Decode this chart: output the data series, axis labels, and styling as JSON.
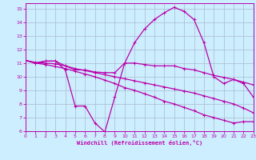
{
  "xlabel": "Windchill (Refroidissement éolien,°C)",
  "xlim": [
    0,
    23
  ],
  "ylim": [
    6,
    15.4
  ],
  "yticks": [
    6,
    7,
    8,
    9,
    10,
    11,
    12,
    13,
    14,
    15
  ],
  "xticks": [
    0,
    1,
    2,
    3,
    4,
    5,
    6,
    7,
    8,
    9,
    10,
    11,
    12,
    13,
    14,
    15,
    16,
    17,
    18,
    19,
    20,
    21,
    22,
    23
  ],
  "background_color": "#cceeff",
  "grid_color": "#aabbcc",
  "line_color": "#bb00aa",
  "line1_x": [
    0,
    1,
    2,
    3,
    4,
    5,
    6,
    7,
    8,
    9,
    10,
    11,
    12,
    13,
    14,
    15,
    16,
    17,
    18,
    19,
    20,
    21,
    22,
    23
  ],
  "line1_y": [
    11.2,
    11.0,
    11.15,
    11.15,
    10.5,
    7.85,
    7.85,
    6.6,
    5.95,
    8.5,
    11.0,
    12.5,
    13.5,
    14.2,
    14.7,
    15.1,
    14.8,
    14.2,
    12.5,
    10.0,
    9.5,
    9.8,
    9.5,
    8.5
  ],
  "line2_x": [
    0,
    1,
    2,
    3,
    4,
    5,
    6,
    7,
    8,
    9,
    10,
    11,
    12,
    13,
    14,
    15,
    16,
    17,
    18,
    19,
    20,
    21,
    22,
    23
  ],
  "line2_y": [
    11.2,
    11.0,
    11.15,
    11.15,
    10.8,
    10.5,
    10.5,
    10.35,
    10.3,
    10.3,
    11.0,
    11.0,
    10.9,
    10.8,
    10.8,
    10.8,
    10.6,
    10.5,
    10.3,
    10.1,
    9.95,
    9.8,
    9.6,
    9.4
  ],
  "line3_x": [
    0,
    1,
    2,
    3,
    4,
    5,
    6,
    7,
    8,
    9,
    10,
    11,
    12,
    13,
    14,
    15,
    16,
    17,
    18,
    19,
    20,
    21,
    22,
    23
  ],
  "line3_y": [
    11.2,
    11.05,
    11.0,
    10.95,
    10.8,
    10.6,
    10.45,
    10.3,
    10.15,
    10.0,
    9.85,
    9.7,
    9.55,
    9.4,
    9.25,
    9.1,
    8.95,
    8.8,
    8.6,
    8.4,
    8.2,
    8.0,
    7.7,
    7.35
  ],
  "line4_x": [
    0,
    1,
    2,
    3,
    4,
    5,
    6,
    7,
    8,
    9,
    10,
    11,
    12,
    13,
    14,
    15,
    16,
    17,
    18,
    19,
    20,
    21,
    22,
    23
  ],
  "line4_y": [
    11.2,
    11.0,
    10.9,
    10.75,
    10.6,
    10.4,
    10.2,
    10.0,
    9.75,
    9.5,
    9.2,
    9.0,
    8.75,
    8.5,
    8.2,
    8.0,
    7.75,
    7.5,
    7.2,
    7.0,
    6.8,
    6.6,
    6.7,
    6.7
  ],
  "markersize": 3,
  "linewidth": 0.9
}
